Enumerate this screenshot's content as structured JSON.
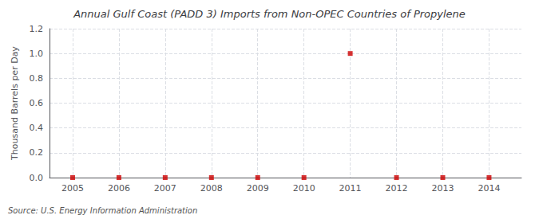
{
  "chart_data": {
    "type": "scatter",
    "title": "Annual Gulf Coast (PADD 3) Imports from Non-OPEC Countries of Propylene",
    "ylabel": "Thousand Barrels per Day",
    "source": "Source: U.S. Energy Information Administration",
    "x": [
      2005,
      2006,
      2007,
      2008,
      2009,
      2010,
      2011,
      2012,
      2013,
      2014
    ],
    "values": [
      0.0,
      0.0,
      0.0,
      0.0,
      0.0,
      0.0,
      1.0,
      0.0,
      0.0,
      0.0
    ],
    "color": "#CC0000",
    "marker": "square",
    "xlim": [
      2004.5,
      2014.7
    ],
    "ylim": [
      0.0,
      1.2
    ],
    "xticks": [
      2005,
      2006,
      2007,
      2008,
      2009,
      2010,
      2011,
      2012,
      2013,
      2014
    ],
    "yticks": [
      {
        "value": 0,
        "label": "0.0"
      },
      0.2,
      0.4,
      0.6,
      0.8,
      {
        "value": 1,
        "label": "1.0"
      },
      1.2
    ],
    "grid": true
  }
}
